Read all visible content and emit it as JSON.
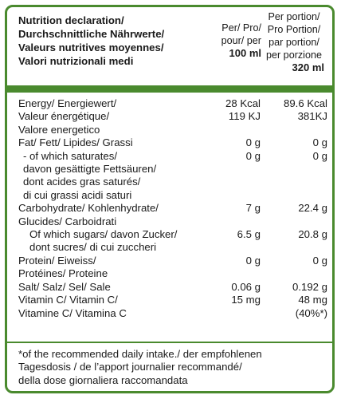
{
  "header": {
    "title": "Nutrition declaration/\nDurchschnittliche Nährwerte/\nValeurs nutritives moyennes/\nValori nutrizionali medi",
    "col1_label": "Per/ Pro/\npour/ per",
    "col1_amount": "100 ml",
    "col2_label": "Per portion/\nPro Portion/\npar portion/\nper porzione",
    "col2_amount": "320 ml"
  },
  "rows": [
    {
      "name": "Energy/ Energiewert/\nValeur énergétique/\nValore energetico",
      "per100": "28 Kcal\n119 KJ",
      "perPortion": "89.6 Kcal\n381KJ",
      "indent": 0
    },
    {
      "name": "Fat/ Fett/ Lipides/ Grassi",
      "per100": "0 g",
      "perPortion": "0 g",
      "indent": 0
    },
    {
      "name": "- of which saturates/\ndavon gesättigte Fettsäuren/\ndont acides gras saturés/\ndi cui grassi acidi saturi",
      "per100": "0 g",
      "perPortion": "0 g",
      "indent": 0
    },
    {
      "name": "Carbohydrate/ Kohlenhydrate/\nGlucides/ Carboidrati",
      "per100": "7 g",
      "perPortion": "22.4 g",
      "indent": 0
    },
    {
      "name": "Of which sugars/ davon Zucker/\ndont sucres/ di cui zuccheri",
      "per100": "6.5 g",
      "perPortion": "20.8 g",
      "indent": 2
    },
    {
      "name": "Protein/ Eiweiss/\nProtéines/ Proteine",
      "per100": "0 g",
      "perPortion": "0 g",
      "indent": 0
    },
    {
      "name": "Salt/ Salz/ Sel/ Sale",
      "per100": "0.06 g",
      "perPortion": "0.192 g",
      "indent": 0
    },
    {
      "name": "Vitamin C/ Vitamin C/\nVitamine C/ Vitamina C",
      "per100": "15 mg",
      "perPortion": "48 mg\n(40%*)",
      "indent": 0
    }
  ],
  "footnote": "*of the recommended daily intake./ der empfohlenen\nTagesdosis / de l’apport journalier recommandé/\ndella dose giornaliera raccomandata",
  "colors": {
    "border": "#4a8a2e",
    "text": "#1a1a1a"
  }
}
